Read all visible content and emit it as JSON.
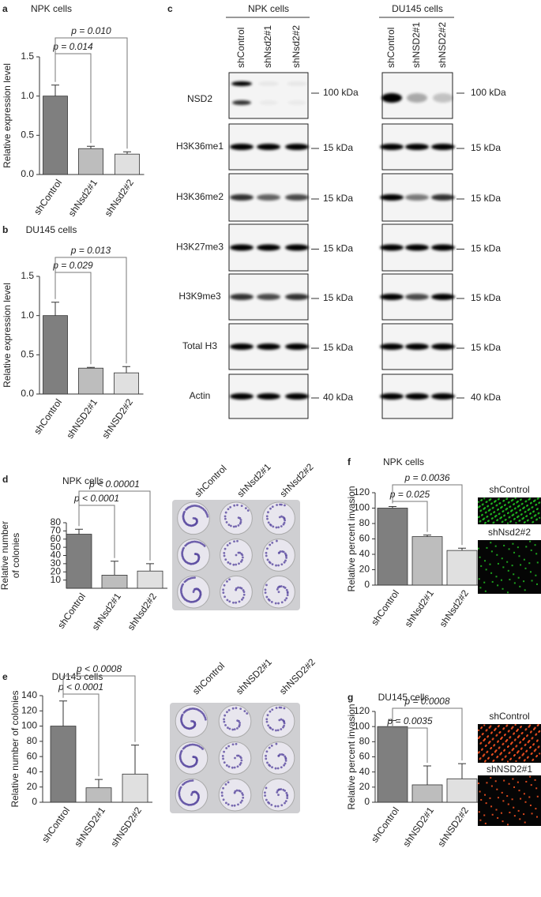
{
  "chart_data": [
    {
      "type": "bar",
      "letter": "a",
      "title": "NPK cells",
      "y_label": [
        "Relative expression level"
      ],
      "categories": [
        "shControl",
        "shNsd2#1",
        "shNsd2#2"
      ],
      "values": [
        1.0,
        0.33,
        0.26
      ],
      "errors": [
        0.14,
        0.03,
        0.03
      ],
      "colors": [
        "#7f7f7f",
        "#bdbdbd",
        "#e0e0e0"
      ],
      "ylim": [
        0,
        1.5
      ],
      "yticks": [
        {
          "value": 0,
          "label": "0.0"
        },
        {
          "value": 0.5,
          "label": "0.5"
        },
        {
          "value": 1,
          "label": "1.0"
        },
        {
          "value": 1.5,
          "label": "1.5"
        }
      ],
      "annotations": [
        "p = 0.014",
        "p = 0.010"
      ]
    },
    {
      "type": "bar",
      "letter": "b",
      "title": "DU145 cells",
      "y_label": [
        "Relative expression level"
      ],
      "categories": [
        "shControl",
        "shNSD2#1",
        "shNSD2#2"
      ],
      "values": [
        1.0,
        0.33,
        0.27
      ],
      "errors": [
        0.17,
        0.01,
        0.08
      ],
      "colors": [
        "#7f7f7f",
        "#bdbdbd",
        "#e0e0e0"
      ],
      "ylim": [
        0,
        1.5
      ],
      "yticks": [
        {
          "value": 0,
          "label": "0.0"
        },
        {
          "value": 0.5,
          "label": "0.5"
        },
        {
          "value": 1,
          "label": "1.0"
        },
        {
          "value": 1.5,
          "label": "1.5"
        }
      ],
      "annotations": [
        "p = 0.029",
        "p = 0.013"
      ]
    },
    {
      "type": "bar",
      "letter": "d",
      "title": "NPK cells",
      "y_label": [
        "Relative number",
        "of colonies"
      ],
      "categories": [
        "shControl",
        "shNsd2#1",
        "shNsd2#2"
      ],
      "values": [
        66,
        16,
        21
      ],
      "errors": [
        6,
        17,
        9
      ],
      "colors": [
        "#7f7f7f",
        "#bdbdbd",
        "#e0e0e0"
      ],
      "ylim": [
        0,
        80
      ],
      "yticks": [
        10,
        20,
        30,
        40,
        50,
        60,
        70,
        80
      ],
      "annotations": [
        "p < 0.0001",
        "p < 0.00001"
      ],
      "image_lanes": [
        "shControl",
        "shNsd2#1",
        "shNsd2#2"
      ]
    },
    {
      "type": "bar",
      "letter": "e",
      "title": "DU145 cells",
      "y_label": [
        "Relative number of colonies"
      ],
      "categories": [
        "shControl",
        "shNSD2#1",
        "shNSD2#2"
      ],
      "values": [
        100,
        19,
        37
      ],
      "errors": [
        33,
        11,
        38
      ],
      "colors": [
        "#7f7f7f",
        "#bdbdbd",
        "#e0e0e0"
      ],
      "ylim": [
        0,
        140
      ],
      "yticks": [
        0,
        20,
        40,
        60,
        80,
        100,
        120,
        140
      ],
      "annotations": [
        "p < 0.0001",
        "p < 0.0008"
      ],
      "image_lanes": [
        "shControl",
        "shNSD2#1",
        "shNSD2#2"
      ]
    },
    {
      "type": "bar",
      "letter": "f",
      "title": "NPK cells",
      "y_label": [
        "Relative percent invasion"
      ],
      "categories": [
        "shControl",
        "shNsd2#1",
        "shNsd2#2"
      ],
      "values": [
        100,
        63,
        45
      ],
      "errors": [
        2,
        2,
        3
      ],
      "colors": [
        "#7f7f7f",
        "#bdbdbd",
        "#e0e0e0"
      ],
      "ylim": [
        0,
        120
      ],
      "yticks": [
        0,
        20,
        40,
        60,
        80,
        100,
        120
      ],
      "annotations": [
        "p = 0.025",
        "p = 0.0036"
      ],
      "image_labels": [
        "shControl",
        "shNsd2#2"
      ]
    },
    {
      "type": "bar",
      "letter": "g",
      "title": "DU145 cells",
      "y_label": [
        "Relative percent invasion"
      ],
      "categories": [
        "shControl",
        "shNSD2#1",
        "shNSD2#2"
      ],
      "values": [
        100,
        23,
        31
      ],
      "errors": [
        8,
        25,
        20
      ],
      "colors": [
        "#7f7f7f",
        "#bdbdbd",
        "#e0e0e0"
      ],
      "ylim": [
        0,
        120
      ],
      "yticks": [
        0,
        20,
        40,
        60,
        80,
        100,
        120
      ],
      "annotations": [
        "p = 0.0035",
        "p = 0.0008"
      ],
      "image_labels": [
        "shControl",
        "shNSD2#1"
      ]
    }
  ],
  "blot": {
    "letter": "c",
    "groups": [
      {
        "title": "NPK cells",
        "lanes": [
          "shControl",
          "shNsd2#1",
          "shNsd2#2"
        ]
      },
      {
        "title": "DU145 cells",
        "lanes": [
          "shControl",
          "shNSD2#1",
          "shNSD2#2"
        ]
      }
    ],
    "rows": [
      {
        "label": "NSD2",
        "size": "100 kDa"
      },
      {
        "label": "H3K36me1",
        "size": "15 kDa"
      },
      {
        "label": "H3K36me2",
        "size": "15 kDa"
      },
      {
        "label": "H3K27me3",
        "size": "15 kDa"
      },
      {
        "label": "H3K9me3",
        "size": "15 kDa"
      },
      {
        "label": "Total H3",
        "size": "15 kDa"
      },
      {
        "label": "Actin",
        "size": "40 kDa"
      }
    ]
  }
}
